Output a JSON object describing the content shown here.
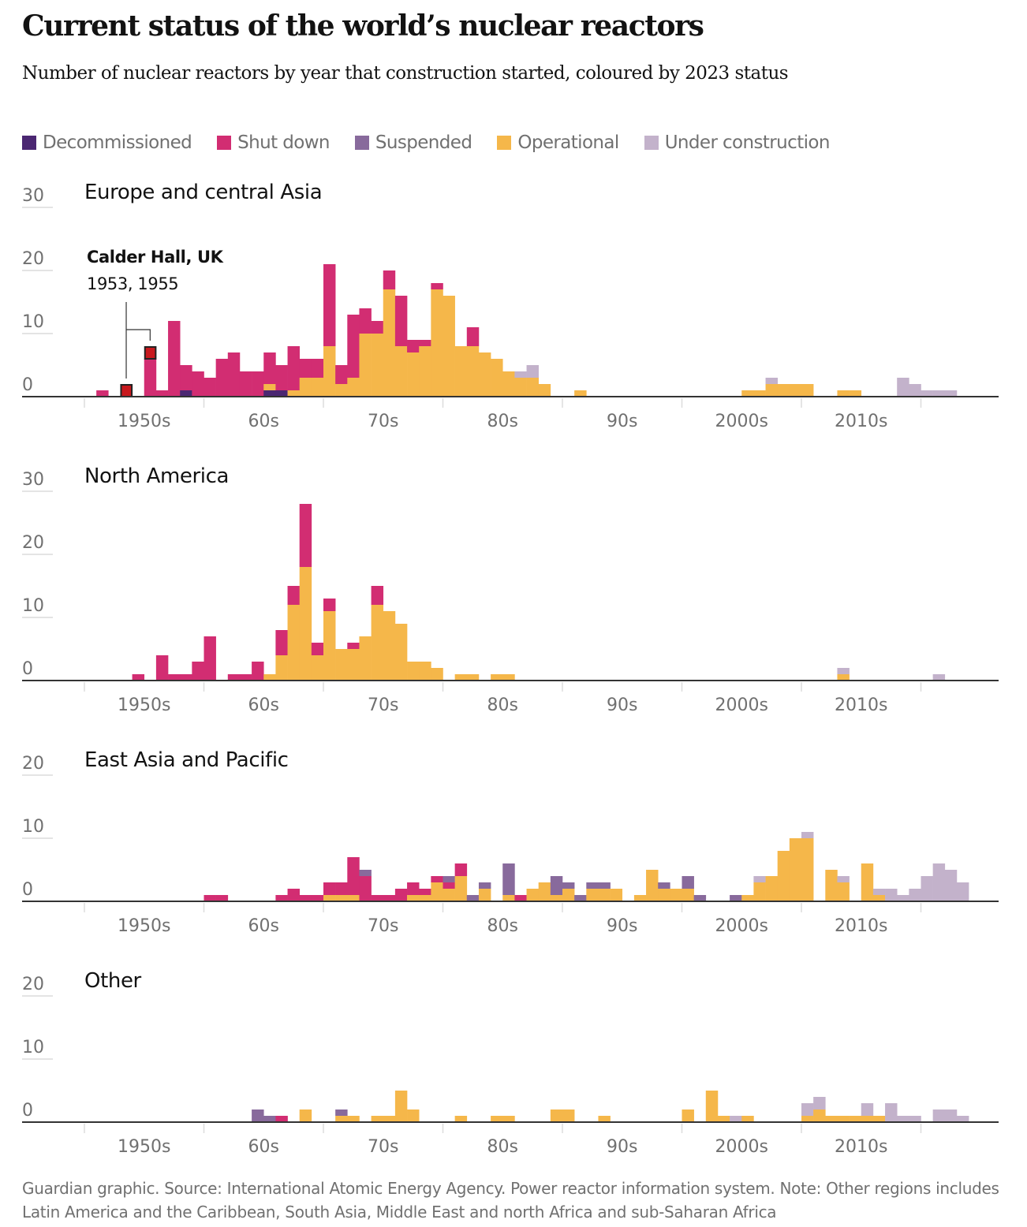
{
  "title": "Current status of the world’s nuclear reactors",
  "subtitle": "Number of nuclear reactors by year that construction started, coloured by 2023 status",
  "footer": "Guardian graphic. Source: International Atomic Energy Agency. Power reactor information system. Note: Other regions includes Latin America and the Caribbean, South Asia, Middle East and north Africa and sub-Saharan Africa",
  "chart_data": {
    "type": "bar",
    "stacked": true,
    "title": "Current status of the world’s nuclear reactors",
    "subtitle": "Number of nuclear reactors by year that construction started, coloured by 2023 status",
    "xlabel": "",
    "ylabel": "",
    "x_range": [
      1945,
      2026
    ],
    "decade_labels": [
      "1950s",
      "60s",
      "70s",
      "80s",
      "90s",
      "2000s",
      "2010s"
    ],
    "decade_starts": [
      1950,
      1960,
      1970,
      1980,
      1990,
      2000,
      2010
    ],
    "legend_position": "top-left",
    "grid": false,
    "statuses": [
      {
        "key": "decommissioned",
        "label": "Decommissioned",
        "color": "#4b2772"
      },
      {
        "key": "shutdown",
        "label": "Shut down",
        "color": "#d22d72"
      },
      {
        "key": "suspended",
        "label": "Suspended",
        "color": "#886a9c"
      },
      {
        "key": "operational",
        "label": "Operational",
        "color": "#f5b74a"
      },
      {
        "key": "under_construction",
        "label": "Under construction",
        "color": "#c3b2cb"
      }
    ],
    "stack_order": [
      "decommissioned",
      "operational",
      "shutdown",
      "suspended",
      "under_construction"
    ],
    "highlight_color": "#c8191e",
    "panels": [
      {
        "name": "Europe and central Asia",
        "ylim": [
          0,
          30
        ],
        "yticks": [
          0,
          10,
          20,
          30
        ],
        "annotation": {
          "title": "Calder Hall, UK",
          "subtitle": "1953, 1955",
          "years": [
            1953,
            1955
          ],
          "count_each": 2
        },
        "data": [
          {
            "year": 1951,
            "shutdown": 1
          },
          {
            "year": 1953,
            "highlight": 2
          },
          {
            "year": 1955,
            "shutdown": 6,
            "highlight": 2
          },
          {
            "year": 1956,
            "shutdown": 1
          },
          {
            "year": 1957,
            "shutdown": 12
          },
          {
            "year": 1958,
            "decommissioned": 1,
            "shutdown": 4
          },
          {
            "year": 1959,
            "shutdown": 4
          },
          {
            "year": 1960,
            "shutdown": 3
          },
          {
            "year": 1961,
            "shutdown": 6
          },
          {
            "year": 1962,
            "shutdown": 7
          },
          {
            "year": 1963,
            "shutdown": 4
          },
          {
            "year": 1964,
            "shutdown": 4
          },
          {
            "year": 1965,
            "decommissioned": 1,
            "operational": 1,
            "shutdown": 5
          },
          {
            "year": 1966,
            "decommissioned": 1,
            "shutdown": 4
          },
          {
            "year": 1967,
            "operational": 1,
            "shutdown": 7
          },
          {
            "year": 1968,
            "operational": 3,
            "shutdown": 3
          },
          {
            "year": 1969,
            "operational": 3,
            "shutdown": 3
          },
          {
            "year": 1970,
            "operational": 8,
            "shutdown": 13
          },
          {
            "year": 1971,
            "operational": 2,
            "shutdown": 3
          },
          {
            "year": 1972,
            "operational": 3,
            "shutdown": 10
          },
          {
            "year": 1973,
            "operational": 10,
            "shutdown": 4
          },
          {
            "year": 1974,
            "operational": 10,
            "shutdown": 2
          },
          {
            "year": 1975,
            "operational": 17,
            "shutdown": 3
          },
          {
            "year": 1976,
            "operational": 8,
            "shutdown": 8
          },
          {
            "year": 1977,
            "operational": 7,
            "shutdown": 2
          },
          {
            "year": 1978,
            "operational": 8,
            "shutdown": 1
          },
          {
            "year": 1979,
            "operational": 17,
            "shutdown": 1
          },
          {
            "year": 1980,
            "operational": 16
          },
          {
            "year": 1981,
            "operational": 8
          },
          {
            "year": 1982,
            "operational": 8,
            "shutdown": 3
          },
          {
            "year": 1983,
            "operational": 7
          },
          {
            "year": 1984,
            "operational": 6
          },
          {
            "year": 1985,
            "operational": 4
          },
          {
            "year": 1986,
            "operational": 3,
            "under_construction": 1
          },
          {
            "year": 1987,
            "operational": 3,
            "under_construction": 2
          },
          {
            "year": 1988,
            "operational": 2
          },
          {
            "year": 1991,
            "operational": 1
          },
          {
            "year": 2005,
            "operational": 1
          },
          {
            "year": 2006,
            "operational": 1
          },
          {
            "year": 2007,
            "operational": 2,
            "under_construction": 1
          },
          {
            "year": 2008,
            "operational": 2
          },
          {
            "year": 2009,
            "operational": 2
          },
          {
            "year": 2010,
            "operational": 2
          },
          {
            "year": 2013,
            "operational": 1
          },
          {
            "year": 2014,
            "operational": 1
          },
          {
            "year": 2018,
            "under_construction": 3
          },
          {
            "year": 2019,
            "under_construction": 2
          },
          {
            "year": 2020,
            "under_construction": 1
          },
          {
            "year": 2021,
            "under_construction": 1
          },
          {
            "year": 2022,
            "under_construction": 1
          }
        ]
      },
      {
        "name": "North America",
        "ylim": [
          0,
          30
        ],
        "yticks": [
          0,
          10,
          20,
          30
        ],
        "data": [
          {
            "year": 1954,
            "shutdown": 1
          },
          {
            "year": 1956,
            "shutdown": 4
          },
          {
            "year": 1957,
            "shutdown": 1
          },
          {
            "year": 1958,
            "shutdown": 1
          },
          {
            "year": 1959,
            "shutdown": 3
          },
          {
            "year": 1960,
            "shutdown": 7
          },
          {
            "year": 1962,
            "shutdown": 1
          },
          {
            "year": 1963,
            "shutdown": 1
          },
          {
            "year": 1964,
            "shutdown": 3
          },
          {
            "year": 1965,
            "operational": 1
          },
          {
            "year": 1966,
            "operational": 4,
            "shutdown": 4
          },
          {
            "year": 1967,
            "operational": 12,
            "shutdown": 3
          },
          {
            "year": 1968,
            "operational": 18,
            "shutdown": 10
          },
          {
            "year": 1969,
            "operational": 4,
            "shutdown": 2
          },
          {
            "year": 1970,
            "operational": 11,
            "shutdown": 2
          },
          {
            "year": 1971,
            "operational": 5
          },
          {
            "year": 1972,
            "operational": 5,
            "shutdown": 1
          },
          {
            "year": 1973,
            "operational": 7
          },
          {
            "year": 1974,
            "operational": 12,
            "shutdown": 3
          },
          {
            "year": 1975,
            "operational": 11
          },
          {
            "year": 1976,
            "operational": 9
          },
          {
            "year": 1977,
            "operational": 3
          },
          {
            "year": 1978,
            "operational": 3
          },
          {
            "year": 1979,
            "operational": 2
          },
          {
            "year": 1981,
            "operational": 1
          },
          {
            "year": 1982,
            "operational": 1
          },
          {
            "year": 1984,
            "operational": 1
          },
          {
            "year": 1985,
            "operational": 1
          },
          {
            "year": 2013,
            "operational": 1,
            "under_construction": 1
          },
          {
            "year": 2021,
            "under_construction": 1
          }
        ]
      },
      {
        "name": "East Asia and Pacific",
        "ylim": [
          0,
          20
        ],
        "yticks": [
          0,
          10,
          20
        ],
        "data": [
          {
            "year": 1960,
            "shutdown": 1
          },
          {
            "year": 1961,
            "shutdown": 1
          },
          {
            "year": 1966,
            "shutdown": 1
          },
          {
            "year": 1967,
            "shutdown": 2
          },
          {
            "year": 1968,
            "shutdown": 1
          },
          {
            "year": 1969,
            "shutdown": 1
          },
          {
            "year": 1970,
            "operational": 1,
            "shutdown": 2
          },
          {
            "year": 1971,
            "operational": 1,
            "shutdown": 2
          },
          {
            "year": 1972,
            "operational": 1,
            "shutdown": 6
          },
          {
            "year": 1973,
            "shutdown": 4,
            "suspended": 1
          },
          {
            "year": 1974,
            "shutdown": 1
          },
          {
            "year": 1975,
            "shutdown": 1
          },
          {
            "year": 1976,
            "shutdown": 2
          },
          {
            "year": 1977,
            "operational": 1,
            "shutdown": 2
          },
          {
            "year": 1978,
            "operational": 1,
            "shutdown": 1
          },
          {
            "year": 1979,
            "operational": 3,
            "shutdown": 1
          },
          {
            "year": 1980,
            "operational": 2,
            "shutdown": 1,
            "suspended": 1
          },
          {
            "year": 1981,
            "operational": 4,
            "shutdown": 2
          },
          {
            "year": 1982,
            "suspended": 1
          },
          {
            "year": 1983,
            "operational": 2,
            "suspended": 1
          },
          {
            "year": 1985,
            "operational": 1,
            "suspended": 5
          },
          {
            "year": 1986,
            "shutdown": 1
          },
          {
            "year": 1987,
            "operational": 2
          },
          {
            "year": 1988,
            "operational": 3
          },
          {
            "year": 1989,
            "operational": 1,
            "suspended": 3
          },
          {
            "year": 1990,
            "operational": 2,
            "suspended": 1
          },
          {
            "year": 1991,
            "suspended": 1
          },
          {
            "year": 1992,
            "operational": 2,
            "suspended": 1
          },
          {
            "year": 1993,
            "operational": 2,
            "suspended": 1
          },
          {
            "year": 1994,
            "operational": 2
          },
          {
            "year": 1996,
            "operational": 1
          },
          {
            "year": 1997,
            "operational": 5
          },
          {
            "year": 1998,
            "operational": 2,
            "suspended": 1
          },
          {
            "year": 1999,
            "operational": 2
          },
          {
            "year": 2000,
            "operational": 2,
            "suspended": 2
          },
          {
            "year": 2001,
            "suspended": 1
          },
          {
            "year": 2004,
            "suspended": 1
          },
          {
            "year": 2005,
            "operational": 1
          },
          {
            "year": 2006,
            "operational": 3,
            "under_construction": 1
          },
          {
            "year": 2007,
            "operational": 4
          },
          {
            "year": 2008,
            "operational": 8
          },
          {
            "year": 2009,
            "operational": 10
          },
          {
            "year": 2010,
            "operational": 10,
            "under_construction": 1
          },
          {
            "year": 2012,
            "operational": 5
          },
          {
            "year": 2013,
            "operational": 3,
            "under_construction": 1
          },
          {
            "year": 2015,
            "operational": 6
          },
          {
            "year": 2016,
            "operational": 1,
            "under_construction": 1
          },
          {
            "year": 2017,
            "under_construction": 2
          },
          {
            "year": 2018,
            "under_construction": 1
          },
          {
            "year": 2019,
            "under_construction": 2
          },
          {
            "year": 2020,
            "under_construction": 4
          },
          {
            "year": 2021,
            "under_construction": 6
          },
          {
            "year": 2022,
            "under_construction": 5
          },
          {
            "year": 2023,
            "under_construction": 3
          }
        ]
      },
      {
        "name": "Other",
        "ylim": [
          0,
          20
        ],
        "yticks": [
          0,
          10,
          20
        ],
        "data": [
          {
            "year": 1964,
            "suspended": 2
          },
          {
            "year": 1965,
            "suspended": 1
          },
          {
            "year": 1966,
            "shutdown": 1
          },
          {
            "year": 1968,
            "operational": 2
          },
          {
            "year": 1971,
            "operational": 1,
            "suspended": 1
          },
          {
            "year": 1972,
            "operational": 1
          },
          {
            "year": 1974,
            "operational": 1
          },
          {
            "year": 1975,
            "operational": 1
          },
          {
            "year": 1976,
            "operational": 5
          },
          {
            "year": 1977,
            "operational": 2
          },
          {
            "year": 1981,
            "operational": 1
          },
          {
            "year": 1984,
            "operational": 1
          },
          {
            "year": 1985,
            "operational": 1
          },
          {
            "year": 1989,
            "operational": 2
          },
          {
            "year": 1990,
            "operational": 2
          },
          {
            "year": 1993,
            "operational": 1
          },
          {
            "year": 2000,
            "operational": 2
          },
          {
            "year": 2002,
            "operational": 5
          },
          {
            "year": 2003,
            "operational": 1
          },
          {
            "year": 2004,
            "under_construction": 1
          },
          {
            "year": 2005,
            "operational": 1
          },
          {
            "year": 2010,
            "operational": 1,
            "under_construction": 2
          },
          {
            "year": 2011,
            "operational": 2,
            "under_construction": 2
          },
          {
            "year": 2012,
            "operational": 1
          },
          {
            "year": 2013,
            "operational": 1
          },
          {
            "year": 2014,
            "operational": 1
          },
          {
            "year": 2015,
            "operational": 1,
            "under_construction": 2
          },
          {
            "year": 2016,
            "operational": 1
          },
          {
            "year": 2017,
            "under_construction": 3
          },
          {
            "year": 2018,
            "under_construction": 1
          },
          {
            "year": 2019,
            "under_construction": 1
          },
          {
            "year": 2021,
            "under_construction": 2
          },
          {
            "year": 2022,
            "under_construction": 2
          },
          {
            "year": 2023,
            "under_construction": 1
          }
        ]
      }
    ]
  }
}
